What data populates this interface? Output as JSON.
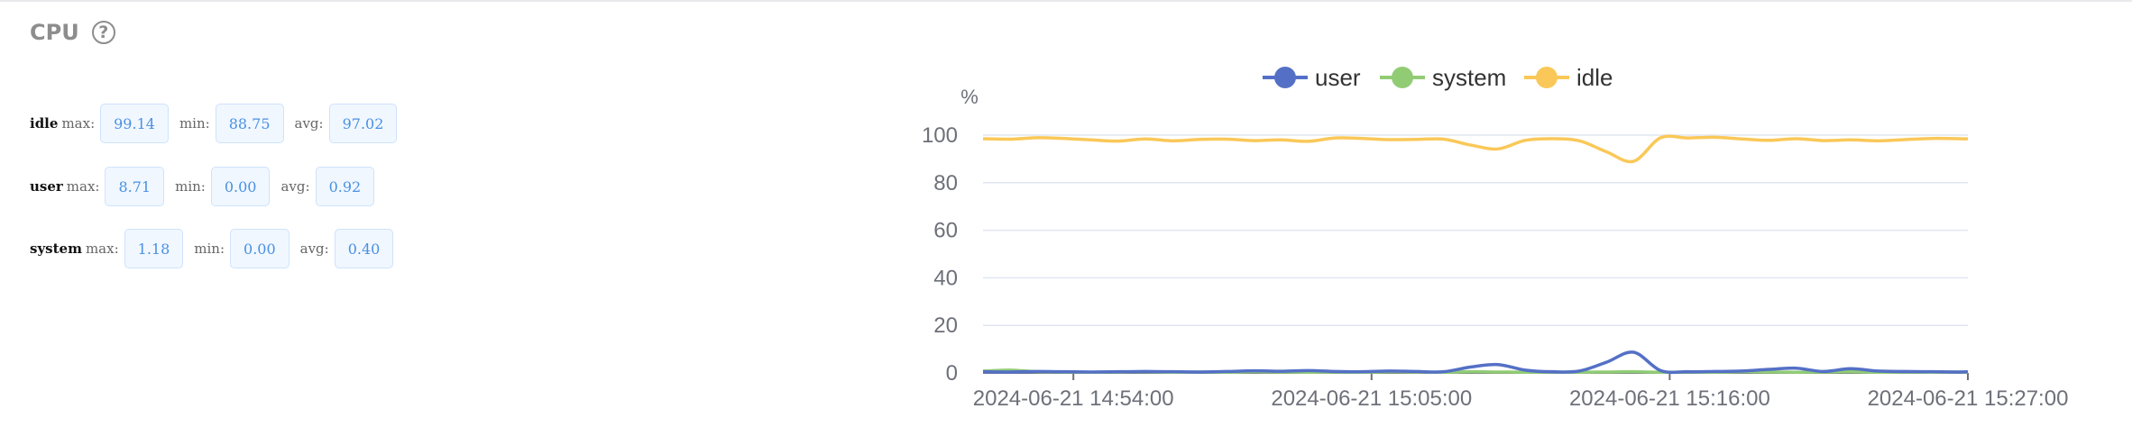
{
  "panel": {
    "title": "CPU",
    "help_icon": "question-circle-icon"
  },
  "stats": [
    {
      "name": "idle",
      "max_label": "max:",
      "max": "99.14",
      "min_label": "min:",
      "min": "88.75",
      "avg_label": "avg:",
      "avg": "97.02"
    },
    {
      "name": "user",
      "max_label": "max:",
      "max": "8.71",
      "min_label": "min:",
      "min": "0.00",
      "avg_label": "avg:",
      "avg": "0.92"
    },
    {
      "name": "system",
      "max_label": "max:",
      "max": "1.18",
      "min_label": "min:",
      "min": "0.00",
      "avg_label": "avg:",
      "avg": "0.40"
    }
  ],
  "chart_data": {
    "type": "line",
    "ylabel": "%",
    "ylim": [
      0,
      100
    ],
    "yticks": [
      0,
      20,
      40,
      60,
      80,
      100
    ],
    "xlim": [
      "2024-06-21 14:50:40",
      "2024-06-21 15:27:00"
    ],
    "xticks": [
      "2024-06-21 14:54:00",
      "2024-06-21 15:05:00",
      "2024-06-21 15:16:00",
      "2024-06-21 15:27:00"
    ],
    "grid": true,
    "legend": "top-center",
    "x": [
      "14:50:40",
      "14:51:40",
      "14:52:40",
      "14:53:40",
      "14:54:40",
      "14:55:40",
      "14:56:40",
      "14:57:40",
      "14:58:40",
      "14:59:40",
      "15:00:40",
      "15:01:40",
      "15:02:40",
      "15:03:40",
      "15:04:40",
      "15:05:40",
      "15:06:40",
      "15:07:40",
      "15:08:40",
      "15:09:40",
      "15:10:40",
      "15:11:40",
      "15:12:40",
      "15:13:40",
      "15:14:40",
      "15:15:40",
      "15:16:40",
      "15:17:40",
      "15:18:40",
      "15:19:40",
      "15:20:40",
      "15:21:40",
      "15:22:40",
      "15:23:40",
      "15:24:40",
      "15:25:40",
      "15:26:40",
      "15:27:00"
    ],
    "series": [
      {
        "name": "user",
        "color": "#5470c6",
        "values": [
          0.5,
          0.4,
          0.6,
          0.5,
          0.4,
          0.5,
          0.6,
          0.5,
          0.4,
          0.6,
          0.9,
          0.7,
          1.0,
          0.6,
          0.5,
          0.8,
          0.6,
          0.5,
          2.5,
          3.5,
          1.2,
          0.5,
          0.8,
          4.5,
          8.7,
          1.0,
          0.5,
          0.6,
          0.8,
          1.5,
          2.0,
          0.6,
          1.8,
          0.8,
          0.6,
          0.5,
          0.4,
          0.5
        ]
      },
      {
        "name": "system",
        "color": "#91cc75",
        "values": [
          0.8,
          1.2,
          0.5,
          0.4,
          0.3,
          0.4,
          0.5,
          0.3,
          0.4,
          0.3,
          0.5,
          0.4,
          0.3,
          0.4,
          0.3,
          0.5,
          0.4,
          0.3,
          0.5,
          0.4,
          0.3,
          0.4,
          0.3,
          0.4,
          0.5,
          0.3,
          0.4,
          0.3,
          0.5,
          0.4,
          0.3,
          0.4,
          0.5,
          0.3,
          0.4,
          0.3,
          0.4,
          0.3
        ]
      },
      {
        "name": "idle",
        "color": "#fac858",
        "values": [
          98.5,
          98.3,
          98.9,
          98.6,
          98.0,
          97.5,
          98.4,
          97.6,
          98.2,
          98.3,
          97.7,
          98.0,
          97.4,
          98.8,
          98.6,
          98.1,
          98.2,
          98.3,
          95.8,
          94.2,
          97.8,
          98.5,
          97.6,
          93.0,
          89.0,
          98.9,
          98.8,
          99.1,
          98.4,
          97.8,
          98.5,
          97.7,
          98.0,
          97.6,
          98.1,
          98.6,
          98.5,
          98.4
        ]
      }
    ]
  }
}
